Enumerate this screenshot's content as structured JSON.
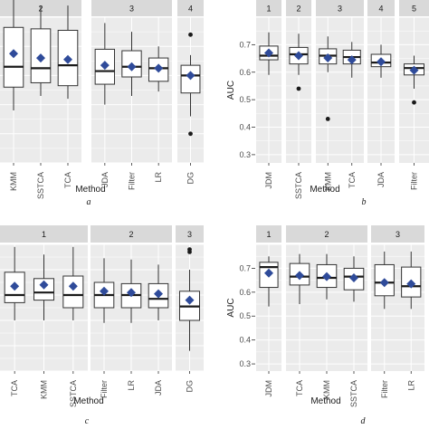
{
  "style": {
    "panel_bg": "#ebebeb",
    "strip_bg": "#d9d9d9",
    "grid_color": "#ffffff",
    "box_fill": "#ffffff",
    "box_stroke": "#333333",
    "mean_color": "#2f4b9a",
    "text_color": "#1a1a1a",
    "axis_text_color": "#4d4d4d"
  },
  "chart_data": [
    {
      "id": "a",
      "type": "boxplot",
      "caption": "a",
      "xlabel": "Method",
      "ylabel": "",
      "ylim": [
        0.3,
        0.8
      ],
      "y_ticks": [],
      "grid": true,
      "facets": [
        {
          "label": "2",
          "methods": [
            {
              "name": "KMM",
              "whisker_low": 0.48,
              "q1": 0.56,
              "median": 0.63,
              "q3": 0.765,
              "whisker_high": 0.86,
              "mean": 0.675,
              "outliers": []
            },
            {
              "name": "SSTCA",
              "whisker_low": 0.53,
              "q1": 0.575,
              "median": 0.625,
              "q3": 0.76,
              "whisker_high": 0.84,
              "mean": 0.66,
              "outliers": []
            },
            {
              "name": "TCA",
              "whisker_low": 0.52,
              "q1": 0.565,
              "median": 0.635,
              "q3": 0.755,
              "whisker_high": 0.84,
              "mean": 0.655,
              "outliers": []
            }
          ]
        },
        {
          "label": "3",
          "methods": [
            {
              "name": "JDA",
              "whisker_low": 0.5,
              "q1": 0.57,
              "median": 0.615,
              "q3": 0.69,
              "whisker_high": 0.78,
              "mean": 0.635,
              "outliers": []
            },
            {
              "name": "Filter",
              "whisker_low": 0.53,
              "q1": 0.595,
              "median": 0.63,
              "q3": 0.685,
              "whisker_high": 0.75,
              "mean": 0.63,
              "outliers": []
            },
            {
              "name": "LR",
              "whisker_low": 0.545,
              "q1": 0.58,
              "median": 0.625,
              "q3": 0.66,
              "whisker_high": 0.7,
              "mean": 0.625,
              "outliers": []
            }
          ]
        },
        {
          "label": "4",
          "methods": [
            {
              "name": "DG",
              "whisker_low": 0.46,
              "q1": 0.54,
              "median": 0.6,
              "q3": 0.635,
              "whisker_high": 0.67,
              "mean": 0.6,
              "outliers": [
                0.74,
                0.4
              ]
            }
          ]
        }
      ]
    },
    {
      "id": "b",
      "type": "boxplot",
      "caption": "b",
      "xlabel": "Method",
      "ylabel": "AUC",
      "ylim": [
        0.27,
        0.8
      ],
      "y_ticks": [
        0.3,
        0.4,
        0.5,
        0.6,
        0.7
      ],
      "grid": true,
      "facets": [
        {
          "label": "1",
          "methods": [
            {
              "name": "JDM",
              "whisker_low": 0.59,
              "q1": 0.645,
              "median": 0.66,
              "q3": 0.695,
              "whisker_high": 0.745,
              "mean": 0.67,
              "outliers": []
            }
          ]
        },
        {
          "label": "2",
          "methods": [
            {
              "name": "SSTCA",
              "whisker_low": 0.59,
              "q1": 0.63,
              "median": 0.665,
              "q3": 0.69,
              "whisker_high": 0.74,
              "mean": 0.66,
              "outliers": [
                0.54
              ]
            }
          ]
        },
        {
          "label": "3",
          "methods": [
            {
              "name": "KMM",
              "whisker_low": 0.6,
              "q1": 0.63,
              "median": 0.66,
              "q3": 0.685,
              "whisker_high": 0.73,
              "mean": 0.652,
              "outliers": [
                0.43
              ]
            },
            {
              "name": "TCA",
              "whisker_low": 0.58,
              "q1": 0.63,
              "median": 0.655,
              "q3": 0.68,
              "whisker_high": 0.71,
              "mean": 0.645,
              "outliers": []
            }
          ]
        },
        {
          "label": "4",
          "methods": [
            {
              "name": "JDA",
              "whisker_low": 0.58,
              "q1": 0.62,
              "median": 0.635,
              "q3": 0.665,
              "whisker_high": 0.7,
              "mean": 0.638,
              "outliers": []
            }
          ]
        },
        {
          "label": "5",
          "methods": [
            {
              "name": "Filter",
              "whisker_low": 0.54,
              "q1": 0.59,
              "median": 0.615,
              "q3": 0.63,
              "whisker_high": 0.66,
              "mean": 0.607,
              "outliers": [
                0.49
              ]
            }
          ]
        }
      ]
    },
    {
      "id": "c",
      "type": "boxplot",
      "caption": "c",
      "xlabel": "Method",
      "ylabel": "",
      "ylim": [
        0.3,
        0.8
      ],
      "y_ticks": [],
      "grid": true,
      "facets": [
        {
          "label": "1",
          "methods": [
            {
              "name": "TCA",
              "whisker_low": 0.5,
              "q1": 0.57,
              "median": 0.6,
              "q3": 0.69,
              "whisker_high": 0.79,
              "mean": 0.635,
              "outliers": []
            },
            {
              "name": "KMM",
              "whisker_low": 0.5,
              "q1": 0.58,
              "median": 0.61,
              "q3": 0.665,
              "whisker_high": 0.76,
              "mean": 0.64,
              "outliers": []
            },
            {
              "name": "SSTCA",
              "whisker_low": 0.5,
              "q1": 0.55,
              "median": 0.6,
              "q3": 0.675,
              "whisker_high": 0.79,
              "mean": 0.635,
              "outliers": []
            }
          ]
        },
        {
          "label": "2",
          "methods": [
            {
              "name": "Filter",
              "whisker_low": 0.49,
              "q1": 0.55,
              "median": 0.6,
              "q3": 0.65,
              "whisker_high": 0.745,
              "mean": 0.615,
              "outliers": []
            },
            {
              "name": "LR",
              "whisker_low": 0.49,
              "q1": 0.55,
              "median": 0.6,
              "q3": 0.645,
              "whisker_high": 0.74,
              "mean": 0.61,
              "outliers": []
            },
            {
              "name": "JDA",
              "whisker_low": 0.5,
              "q1": 0.55,
              "median": 0.585,
              "q3": 0.645,
              "whisker_high": 0.72,
              "mean": 0.605,
              "outliers": []
            }
          ]
        },
        {
          "label": "3",
          "methods": [
            {
              "name": "DG",
              "whisker_low": 0.38,
              "q1": 0.5,
              "median": 0.555,
              "q3": 0.615,
              "whisker_high": 0.7,
              "mean": 0.58,
              "outliers": [
                0.78,
                0.77
              ]
            }
          ]
        }
      ]
    },
    {
      "id": "d",
      "type": "boxplot",
      "caption": "d",
      "xlabel": "Method",
      "ylabel": "AUC",
      "ylim": [
        0.27,
        0.8
      ],
      "y_ticks": [
        0.3,
        0.4,
        0.5,
        0.6,
        0.7
      ],
      "grid": true,
      "facets": [
        {
          "label": "1",
          "methods": [
            {
              "name": "JDM",
              "whisker_low": 0.54,
              "q1": 0.62,
              "median": 0.705,
              "q3": 0.725,
              "whisker_high": 0.75,
              "mean": 0.68,
              "outliers": []
            }
          ]
        },
        {
          "label": "2",
          "methods": [
            {
              "name": "TCA",
              "whisker_low": 0.55,
              "q1": 0.63,
              "median": 0.665,
              "q3": 0.72,
              "whisker_high": 0.76,
              "mean": 0.67,
              "outliers": []
            },
            {
              "name": "KMM",
              "whisker_low": 0.57,
              "q1": 0.62,
              "median": 0.66,
              "q3": 0.715,
              "whisker_high": 0.76,
              "mean": 0.665,
              "outliers": []
            },
            {
              "name": "SSTCA",
              "whisker_low": 0.56,
              "q1": 0.61,
              "median": 0.665,
              "q3": 0.7,
              "whisker_high": 0.75,
              "mean": 0.66,
              "outliers": []
            }
          ]
        },
        {
          "label": "3",
          "methods": [
            {
              "name": "Filter",
              "whisker_low": 0.53,
              "q1": 0.585,
              "median": 0.64,
              "q3": 0.715,
              "whisker_high": 0.77,
              "mean": 0.64,
              "outliers": []
            },
            {
              "name": "LR",
              "whisker_low": 0.53,
              "q1": 0.58,
              "median": 0.625,
              "q3": 0.705,
              "whisker_high": 0.77,
              "mean": 0.635,
              "outliers": []
            }
          ]
        }
      ]
    }
  ]
}
